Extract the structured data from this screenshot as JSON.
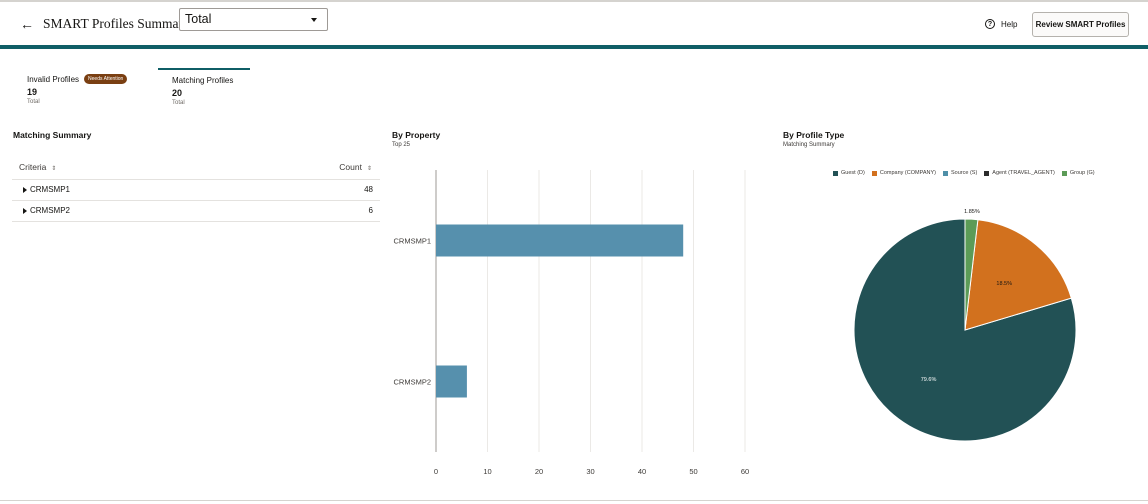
{
  "header": {
    "back_glyph": "←",
    "title": "SMART Profiles Summary",
    "select_value": "Total",
    "help_label": "Help",
    "review_button": "Review SMART Profiles"
  },
  "tabs": {
    "invalid": {
      "label": "Invalid Profiles",
      "badge": "Needs Attention",
      "count": "19",
      "sub": "Total"
    },
    "matching": {
      "label": "Matching Profiles",
      "count": "20",
      "sub": "Total"
    }
  },
  "matching_summary": {
    "title": "Matching Summary",
    "col_criteria": "Criteria",
    "col_count": "Count",
    "rows": [
      {
        "name": "CRMSMP1",
        "count": "48"
      },
      {
        "name": "CRMSMP2",
        "count": "6"
      }
    ]
  },
  "by_property": {
    "title": "By Property",
    "subtitle": "Top 25"
  },
  "by_profile_type": {
    "title": "By Profile Type",
    "subtitle": "Matching Summary"
  },
  "colors": {
    "accent": "#0f5e66",
    "badge": "#7a3f12",
    "bar": "#5690ad",
    "guest": "#225155",
    "company": "#d2711e",
    "source": "#4f8fa8",
    "agent": "#2b2b2b",
    "group": "#5c9b57"
  },
  "chart_data": [
    {
      "type": "bar",
      "orientation": "horizontal",
      "categories": [
        "CRMSMP1",
        "CRMSMP2"
      ],
      "values": [
        48,
        6
      ],
      "title": "By Property",
      "subtitle": "Top 25",
      "xlim": [
        0,
        60
      ],
      "x_ticks": [
        0,
        10,
        20,
        30,
        40,
        50,
        60
      ],
      "grid": true
    },
    {
      "type": "pie",
      "title": "By Profile Type",
      "subtitle": "Matching Summary",
      "legend_position": "top",
      "legend": [
        "Guest (D)",
        "Company (COMPANY)",
        "Source (S)",
        "Agent (TRAVEL_AGENT)",
        "Group (G)"
      ],
      "slices": [
        {
          "label": "Guest (D)",
          "value": 79.6,
          "text": "79.6%"
        },
        {
          "label": "Company (COMPANY)",
          "value": 18.5,
          "text": "18.5%"
        },
        {
          "label": "Source (S)",
          "value": 0,
          "text": ""
        },
        {
          "label": "Agent (TRAVEL_AGENT)",
          "value": 0,
          "text": ""
        },
        {
          "label": "Group (G)",
          "value": 1.85,
          "text": "1.85%"
        }
      ]
    }
  ]
}
